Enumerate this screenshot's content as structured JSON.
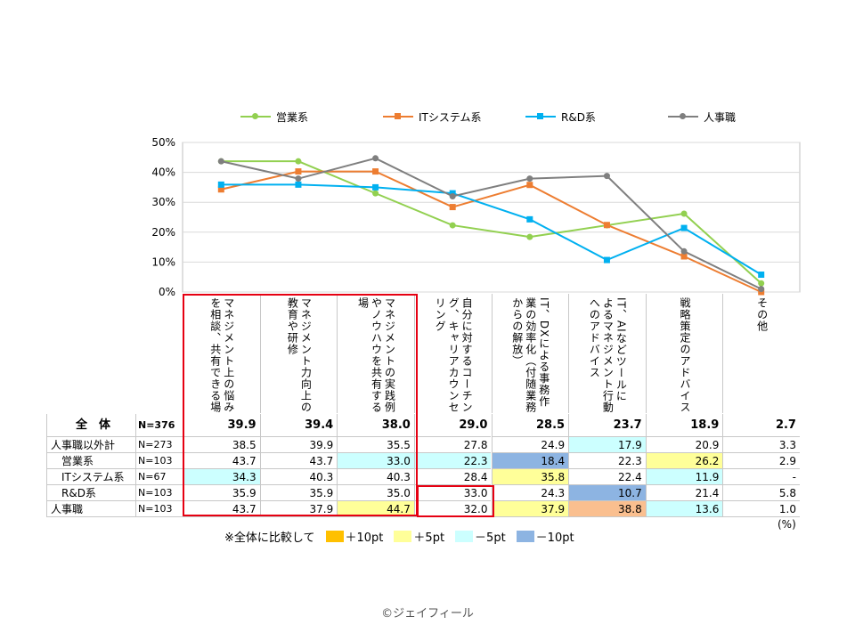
{
  "legend": [
    {
      "name": "営業系",
      "color": "#92d050",
      "marker": "circle"
    },
    {
      "name": "ITシステム系",
      "color": "#ed7d31",
      "marker": "square"
    },
    {
      "name": "R&D系",
      "color": "#00b0f0",
      "marker": "square"
    },
    {
      "name": "人事職",
      "color": "#7f7f7f",
      "marker": "circle"
    }
  ],
  "chart_data": {
    "type": "line",
    "ylim": [
      0,
      50
    ],
    "yticks": [
      "0%",
      "10%",
      "20%",
      "30%",
      "40%",
      "50%"
    ],
    "grid": true,
    "legend_position": "top",
    "categories": [
      "マネジメント上の悩みを相談、共有できる場",
      "マネジメント力向上の教育や研修",
      "マネジメントの実践例やノウハウを共有する場",
      "自分に対するコーチング、キャリアカウンセリング",
      "IT、DXによる事務作業の効率化（付随業務からの解放）",
      "IT、AIなどツールによるマネジメント行動へのアドバイス",
      "戦略策定のアドバイス",
      "その他"
    ],
    "series": [
      {
        "name": "営業系",
        "color": "#92d050",
        "values": [
          43.7,
          43.7,
          33.0,
          22.3,
          18.4,
          22.3,
          26.2,
          2.9
        ]
      },
      {
        "name": "ITシステム系",
        "color": "#ed7d31",
        "values": [
          34.3,
          40.3,
          40.3,
          28.4,
          35.8,
          22.4,
          11.9,
          0
        ]
      },
      {
        "name": "R&D系",
        "color": "#00b0f0",
        "values": [
          35.9,
          35.9,
          35.0,
          33.0,
          24.3,
          10.7,
          21.4,
          5.8
        ]
      },
      {
        "name": "人事職",
        "color": "#7f7f7f",
        "values": [
          43.7,
          37.9,
          44.7,
          32.0,
          37.9,
          38.8,
          13.6,
          1.0
        ]
      }
    ]
  },
  "table": {
    "rows": [
      {
        "label": "全　体",
        "n": "N=376",
        "values": [
          "39.9",
          "39.4",
          "38.0",
          "29.0",
          "28.5",
          "23.7",
          "18.9",
          "2.7"
        ],
        "fills": [
          "",
          "",
          "",
          "",
          "",
          "",
          "",
          ""
        ]
      },
      {
        "label": "人事職以外計",
        "n": "N=273",
        "values": [
          "38.5",
          "39.9",
          "35.5",
          "27.8",
          "24.9",
          "17.9",
          "20.9",
          "3.3"
        ],
        "fills": [
          "",
          "",
          "",
          "",
          "",
          "#ccffff",
          "",
          ""
        ]
      },
      {
        "label": "営業系",
        "n": "N=103",
        "values": [
          "43.7",
          "43.7",
          "33.0",
          "22.3",
          "18.4",
          "22.3",
          "26.2",
          "2.9"
        ],
        "fills": [
          "",
          "",
          "#ccffff",
          "#ccffff",
          "#8db4e2",
          "",
          "#ffff99",
          ""
        ]
      },
      {
        "label": "ITシステム系",
        "n": "N=67",
        "values": [
          "34.3",
          "40.3",
          "40.3",
          "28.4",
          "35.8",
          "22.4",
          "11.9",
          "-"
        ],
        "fills": [
          "#ccffff",
          "",
          "",
          "",
          "#ffff99",
          "",
          "#ccffff",
          ""
        ]
      },
      {
        "label": "R&D系",
        "n": "N=103",
        "values": [
          "35.9",
          "35.9",
          "35.0",
          "33.0",
          "24.3",
          "10.7",
          "21.4",
          "5.8"
        ],
        "fills": [
          "",
          "",
          "",
          "",
          "",
          "#8db4e2",
          "",
          ""
        ]
      },
      {
        "label": "人事職",
        "n": "N=103",
        "values": [
          "43.7",
          "37.9",
          "44.7",
          "32.0",
          "37.9",
          "38.8",
          "13.6",
          "1.0"
        ],
        "fills": [
          "",
          "",
          "#ffff99",
          "",
          "#ffff99",
          "#fabf8f",
          "#ccffff",
          ""
        ]
      }
    ]
  },
  "scale_note": {
    "prefix": "※全体に比較して",
    "items": [
      {
        "label": "＋10pt",
        "color": "#ffc000"
      },
      {
        "label": "＋5pt",
        "color": "#ffff99"
      },
      {
        "label": "－5pt",
        "color": "#ccffff"
      },
      {
        "label": "－10pt",
        "color": "#8db4e2"
      }
    ]
  },
  "unit": "(%)",
  "copyright": "©ジェイフィール"
}
